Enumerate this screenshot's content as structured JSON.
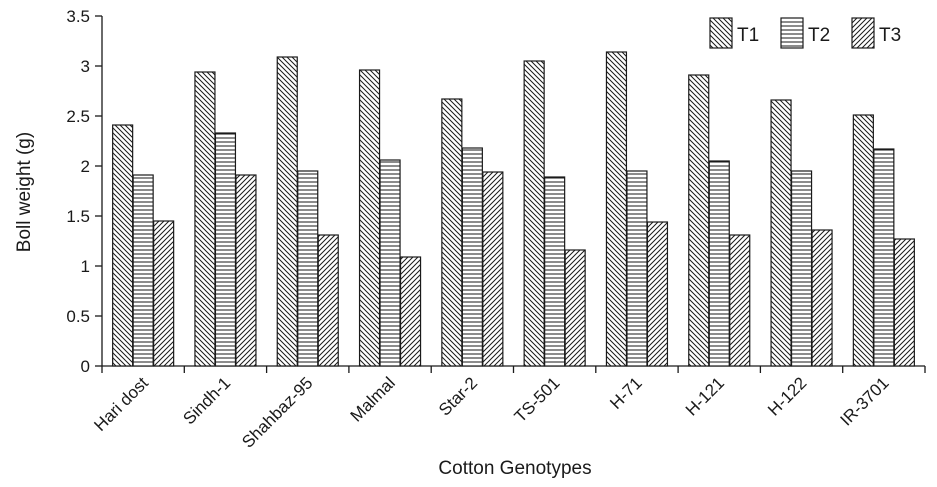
{
  "chart_data": {
    "type": "bar",
    "title": "",
    "xlabel": "Cotton Genotypes",
    "ylabel": "Boll weight (g)",
    "ylim": [
      0,
      3.5
    ],
    "yticks": [
      "0",
      "0.5",
      "1",
      "1.5",
      "2",
      "2.5",
      "3",
      "3.5"
    ],
    "categories": [
      "Hari dost",
      "Sindh-1",
      "Shahbaz-95",
      "Malmal",
      "Star-2",
      "TS-501",
      "H-71",
      "H-121",
      "H-122",
      "IR-3701"
    ],
    "series": [
      {
        "name": "T1",
        "pattern": "diagonal-down",
        "values": [
          2.41,
          2.94,
          3.09,
          2.96,
          2.67,
          3.05,
          3.14,
          2.91,
          2.66,
          2.51
        ]
      },
      {
        "name": "T2",
        "pattern": "horizontal",
        "values": [
          1.91,
          2.33,
          1.95,
          2.06,
          2.18,
          1.89,
          1.95,
          2.05,
          1.95,
          2.17
        ]
      },
      {
        "name": "T3",
        "pattern": "diagonal-up",
        "values": [
          1.45,
          1.91,
          1.31,
          1.09,
          1.94,
          1.16,
          1.44,
          1.31,
          1.36,
          1.27
        ]
      }
    ],
    "legend_position": "top-right",
    "grid": false,
    "colors": {
      "ink": "#1a1a1a",
      "bar_fill": "#ffffff"
    }
  }
}
